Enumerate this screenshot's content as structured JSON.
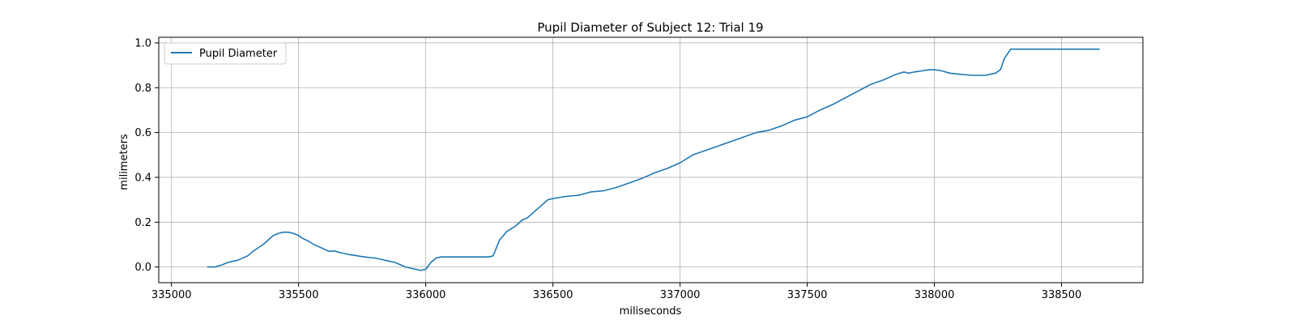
{
  "chart_data": {
    "type": "line",
    "title": "Pupil Diameter of Subject 12: Trial 19",
    "xlabel": "miliseconds",
    "ylabel": "milimeters",
    "xlim": [
      334950,
      338820
    ],
    "ylim": [
      -0.07,
      1.025
    ],
    "xticks": [
      335000,
      335500,
      336000,
      336500,
      337000,
      337500,
      338000,
      338500
    ],
    "yticks": [
      0.0,
      0.2,
      0.4,
      0.6,
      0.8,
      1.0
    ],
    "xtick_labels": [
      "335000",
      "335500",
      "336000",
      "336500",
      "337000",
      "337500",
      "338000",
      "338500"
    ],
    "ytick_labels": [
      "0.0",
      "0.2",
      "0.4",
      "0.6",
      "0.8",
      "1.0"
    ],
    "grid": true,
    "legend_position": "top-left",
    "colors": {
      "series": "#1f77b4",
      "grid": "#b0b0b0",
      "axes": "#000000"
    },
    "series": [
      {
        "name": "Pupil Diameter",
        "x": [
          335140,
          335170,
          335200,
          335220,
          335240,
          335260,
          335300,
          335320,
          335340,
          335360,
          335380,
          335400,
          335420,
          335440,
          335460,
          335480,
          335500,
          335520,
          335540,
          335560,
          335580,
          335600,
          335620,
          335640,
          335660,
          335680,
          335700,
          335720,
          335740,
          335760,
          335780,
          335800,
          335820,
          335840,
          335860,
          335880,
          335900,
          335920,
          335940,
          335960,
          335980,
          336000,
          336020,
          336040,
          336060,
          336100,
          336150,
          336200,
          336250,
          336265,
          336290,
          336320,
          336350,
          336380,
          336400,
          336420,
          336440,
          336460,
          336480,
          336500,
          336550,
          336600,
          336650,
          336700,
          336750,
          336800,
          336850,
          336900,
          336950,
          337000,
          337050,
          337100,
          337150,
          337200,
          337250,
          337300,
          337350,
          337400,
          337450,
          337500,
          337550,
          337600,
          337650,
          337700,
          337750,
          337800,
          337850,
          337880,
          337900,
          337920,
          337950,
          337980,
          338000,
          338030,
          338060,
          338100,
          338150,
          338200,
          338220,
          338240,
          338260,
          338275,
          338300,
          338400,
          338500,
          338600,
          338650
        ],
        "values": [
          0.0,
          0.0,
          0.01,
          0.02,
          0.025,
          0.03,
          0.05,
          0.07,
          0.085,
          0.1,
          0.12,
          0.14,
          0.15,
          0.155,
          0.155,
          0.15,
          0.14,
          0.125,
          0.115,
          0.1,
          0.09,
          0.08,
          0.07,
          0.072,
          0.065,
          0.06,
          0.055,
          0.052,
          0.048,
          0.045,
          0.042,
          0.04,
          0.035,
          0.03,
          0.025,
          0.02,
          0.01,
          0.0,
          -0.005,
          -0.01,
          -0.015,
          -0.01,
          0.02,
          0.04,
          0.045,
          0.045,
          0.045,
          0.045,
          0.045,
          0.05,
          0.12,
          0.16,
          0.18,
          0.21,
          0.22,
          0.24,
          0.26,
          0.28,
          0.3,
          0.305,
          0.315,
          0.32,
          0.335,
          0.34,
          0.355,
          0.375,
          0.395,
          0.42,
          0.44,
          0.465,
          0.5,
          0.52,
          0.54,
          0.56,
          0.58,
          0.6,
          0.61,
          0.63,
          0.655,
          0.67,
          0.7,
          0.725,
          0.755,
          0.785,
          0.815,
          0.835,
          0.86,
          0.87,
          0.865,
          0.87,
          0.875,
          0.88,
          0.88,
          0.875,
          0.865,
          0.86,
          0.855,
          0.855,
          0.86,
          0.865,
          0.88,
          0.93,
          0.972,
          0.972,
          0.972,
          0.972,
          0.972
        ]
      }
    ]
  }
}
